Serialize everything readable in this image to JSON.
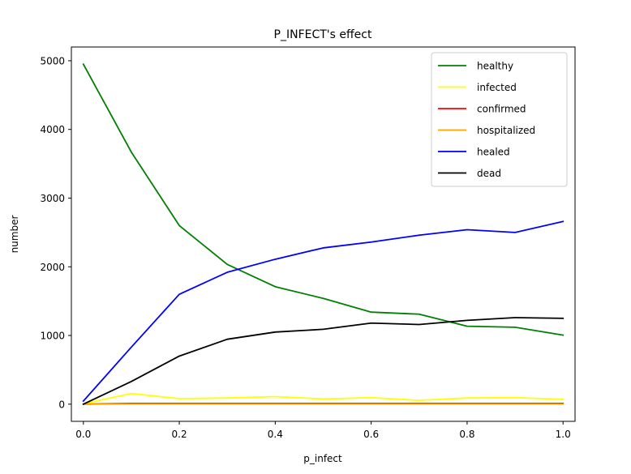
{
  "chart_data": {
    "type": "line",
    "title": "P_INFECT's effect",
    "xlabel": "p_infect",
    "ylabel": "number",
    "xlim": [
      -0.025,
      1.025
    ],
    "ylim": [
      -250,
      5200
    ],
    "xticks": [
      0.0,
      0.2,
      0.4,
      0.6,
      0.8,
      1.0
    ],
    "xtick_labels": [
      "0.0",
      "0.2",
      "0.4",
      "0.6",
      "0.8",
      "1.0"
    ],
    "yticks": [
      0,
      1000,
      2000,
      3000,
      4000,
      5000
    ],
    "ytick_labels": [
      "0",
      "1000",
      "2000",
      "3000",
      "4000",
      "5000"
    ],
    "grid": false,
    "legend_position": "top-right",
    "x": [
      0.0,
      0.1,
      0.2,
      0.3,
      0.4,
      0.5,
      0.6,
      0.7,
      0.8,
      0.9,
      1.0
    ],
    "series": [
      {
        "name": "healthy",
        "color": "#008000",
        "values": [
          4950,
          3670,
          2600,
          2035,
          1710,
          1540,
          1340,
          1310,
          1135,
          1120,
          1005
        ]
      },
      {
        "name": "infected",
        "color": "#ffff00",
        "values": [
          5,
          155,
          80,
          90,
          110,
          75,
          95,
          55,
          90,
          95,
          70
        ]
      },
      {
        "name": "confirmed",
        "color": "#ff0000",
        "values": [
          0,
          10,
          10,
          10,
          10,
          10,
          10,
          10,
          10,
          10,
          10
        ]
      },
      {
        "name": "hospitalized",
        "color": "#ffa500",
        "values": [
          0,
          2,
          2,
          2,
          2,
          2,
          2,
          2,
          2,
          2,
          2
        ]
      },
      {
        "name": "healed",
        "color": "#0000ff",
        "values": [
          45,
          830,
          1600,
          1920,
          2110,
          2275,
          2360,
          2460,
          2540,
          2500,
          2660
        ]
      },
      {
        "name": "dead",
        "color": "#000000",
        "values": [
          0,
          330,
          700,
          945,
          1050,
          1090,
          1180,
          1160,
          1220,
          1260,
          1250
        ]
      }
    ]
  }
}
